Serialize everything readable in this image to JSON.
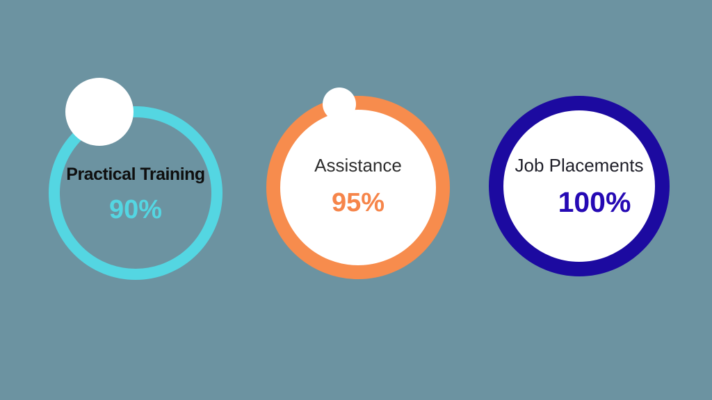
{
  "page": {
    "background": "#6C93A1"
  },
  "cards": [
    {
      "id": "practical-training",
      "label": "Practical Training",
      "value": "90%",
      "percent": 90,
      "ring_color": "#54D6E2",
      "ring_fill": "transparent",
      "label_color": "#0F0F0F",
      "value_color": "#54D6E2",
      "marker_color": "#FFFFFF"
    },
    {
      "id": "assistance",
      "label": "Assistance",
      "value": "95%",
      "percent": 95,
      "ring_color": "#F78C4D",
      "ring_fill": "#FFFFFF",
      "label_color": "#2D2D2D",
      "value_color": "#F6854A",
      "marker_color": "#FFFFFF"
    },
    {
      "id": "job-placements",
      "label": "Job Placements",
      "value": "100%",
      "percent": 100,
      "ring_color": "#1C0AA0",
      "ring_fill": "#FFFFFF",
      "label_color": "#1E1E28",
      "value_color": "#2509B4",
      "marker_color": "#FFFFFF"
    }
  ],
  "chart_data": {
    "type": "pie",
    "subtype": "donut-progress-rings",
    "categories": [
      "Practical Training",
      "Assistance",
      "Job Placements"
    ],
    "values": [
      90,
      95,
      100
    ],
    "unit": "%",
    "colors": [
      "#54D6E2",
      "#F78C4D",
      "#1C0AA0"
    ],
    "title": "",
    "legend": false,
    "background": "#6C93A1"
  }
}
